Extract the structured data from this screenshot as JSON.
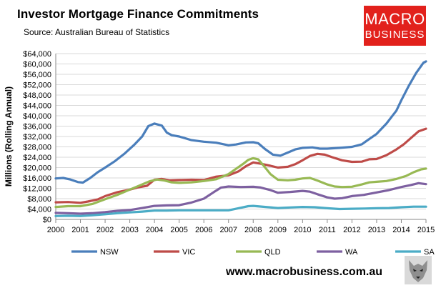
{
  "header": {
    "title": "Investor Mortgage Finance Commitments",
    "subtitle": "Source: Australian Bureau of Statistics"
  },
  "logo": {
    "line1": "MACRO",
    "line2": "BUSINESS"
  },
  "footer": {
    "url": "www.macrobusiness.com.au"
  },
  "chart_data": {
    "type": "line",
    "title": "Investor Mortgage Finance Commitments",
    "ylabel": "Millions (Rolling Annual)",
    "xlabel": "",
    "ylim": [
      0,
      64000
    ],
    "xlim": [
      2000,
      2015
    ],
    "yticks": [
      "$0",
      "$4,000",
      "$8,000",
      "$12,000",
      "$16,000",
      "$20,000",
      "$24,000",
      "$28,000",
      "$32,000",
      "$36,000",
      "$40,000",
      "$44,000",
      "$48,000",
      "$52,000",
      "$56,000",
      "$60,000",
      "$64,000"
    ],
    "xticks": [
      "2000",
      "2001",
      "2002",
      "2003",
      "2004",
      "2005",
      "2006",
      "2007",
      "2008",
      "2009",
      "2010",
      "2011",
      "2012",
      "2013",
      "2014",
      "2015"
    ],
    "grid": true,
    "legend": "bottom",
    "series": [
      {
        "name": "NSW",
        "color": "#4a7ebb",
        "points": [
          [
            2000,
            15800
          ],
          [
            2000.3,
            16000
          ],
          [
            2000.6,
            15400
          ],
          [
            2000.9,
            14400
          ],
          [
            2001.1,
            14200
          ],
          [
            2001.4,
            16000
          ],
          [
            2001.7,
            18200
          ],
          [
            2002,
            20000
          ],
          [
            2002.4,
            22500
          ],
          [
            2002.8,
            25500
          ],
          [
            2003.2,
            29000
          ],
          [
            2003.5,
            32000
          ],
          [
            2003.75,
            36000
          ],
          [
            2004,
            37000
          ],
          [
            2004.3,
            36200
          ],
          [
            2004.5,
            33500
          ],
          [
            2004.7,
            32500
          ],
          [
            2005,
            32000
          ],
          [
            2005.5,
            30600
          ],
          [
            2006,
            30000
          ],
          [
            2006.5,
            29600
          ],
          [
            2007,
            28600
          ],
          [
            2007.3,
            28900
          ],
          [
            2007.7,
            29700
          ],
          [
            2008,
            29800
          ],
          [
            2008.2,
            29400
          ],
          [
            2008.5,
            27000
          ],
          [
            2008.8,
            25000
          ],
          [
            2009.1,
            24600
          ],
          [
            2009.4,
            25800
          ],
          [
            2009.7,
            27000
          ],
          [
            2010,
            27600
          ],
          [
            2010.4,
            27800
          ],
          [
            2010.7,
            27300
          ],
          [
            2011,
            27300
          ],
          [
            2011.5,
            27600
          ],
          [
            2012,
            28000
          ],
          [
            2012.4,
            29000
          ],
          [
            2012.7,
            31000
          ],
          [
            2013,
            33000
          ],
          [
            2013.4,
            37000
          ],
          [
            2013.8,
            42000
          ],
          [
            2014,
            46000
          ],
          [
            2014.3,
            51500
          ],
          [
            2014.6,
            56500
          ],
          [
            2014.9,
            60500
          ],
          [
            2015,
            61000
          ]
        ]
      },
      {
        "name": "VIC",
        "color": "#be4b48",
        "points": [
          [
            2000,
            6600
          ],
          [
            2000.5,
            6700
          ],
          [
            2001,
            6400
          ],
          [
            2001.3,
            6900
          ],
          [
            2001.7,
            7700
          ],
          [
            2002,
            9000
          ],
          [
            2002.5,
            10500
          ],
          [
            2003,
            11500
          ],
          [
            2003.3,
            12300
          ],
          [
            2003.7,
            13000
          ],
          [
            2004,
            15300
          ],
          [
            2004.3,
            15600
          ],
          [
            2004.6,
            15100
          ],
          [
            2005,
            15200
          ],
          [
            2005.5,
            15300
          ],
          [
            2006,
            15200
          ],
          [
            2006.5,
            16500
          ],
          [
            2007,
            17000
          ],
          [
            2007.4,
            18500
          ],
          [
            2007.7,
            20500
          ],
          [
            2008,
            22000
          ],
          [
            2008.3,
            21500
          ],
          [
            2008.7,
            20700
          ],
          [
            2009,
            20000
          ],
          [
            2009.4,
            20300
          ],
          [
            2009.7,
            21300
          ],
          [
            2010,
            22800
          ],
          [
            2010.3,
            24500
          ],
          [
            2010.6,
            25300
          ],
          [
            2010.9,
            25000
          ],
          [
            2011.2,
            24000
          ],
          [
            2011.6,
            22800
          ],
          [
            2012,
            22200
          ],
          [
            2012.4,
            22300
          ],
          [
            2012.7,
            23200
          ],
          [
            2013,
            23300
          ],
          [
            2013.4,
            24800
          ],
          [
            2013.8,
            27000
          ],
          [
            2014.1,
            29000
          ],
          [
            2014.4,
            31500
          ],
          [
            2014.7,
            34000
          ],
          [
            2015,
            35000
          ]
        ]
      },
      {
        "name": "QLD",
        "color": "#98b954",
        "points": [
          [
            2000,
            4800
          ],
          [
            2000.5,
            5100
          ],
          [
            2001,
            5100
          ],
          [
            2001.5,
            6000
          ],
          [
            2002,
            7800
          ],
          [
            2002.5,
            9500
          ],
          [
            2003,
            11500
          ],
          [
            2003.5,
            13500
          ],
          [
            2003.8,
            14700
          ],
          [
            2004.1,
            15400
          ],
          [
            2004.4,
            15000
          ],
          [
            2004.7,
            14300
          ],
          [
            2005,
            14100
          ],
          [
            2005.5,
            14300
          ],
          [
            2006,
            14800
          ],
          [
            2006.5,
            15500
          ],
          [
            2007,
            17500
          ],
          [
            2007.3,
            19500
          ],
          [
            2007.6,
            21500
          ],
          [
            2007.8,
            23000
          ],
          [
            2008,
            23600
          ],
          [
            2008.2,
            23200
          ],
          [
            2008.4,
            21000
          ],
          [
            2008.7,
            17500
          ],
          [
            2009,
            15300
          ],
          [
            2009.4,
            15100
          ],
          [
            2009.7,
            15300
          ],
          [
            2010,
            15800
          ],
          [
            2010.3,
            16000
          ],
          [
            2010.6,
            15000
          ],
          [
            2011,
            13500
          ],
          [
            2011.3,
            12700
          ],
          [
            2011.6,
            12500
          ],
          [
            2012,
            12600
          ],
          [
            2012.4,
            13500
          ],
          [
            2012.7,
            14300
          ],
          [
            2013,
            14500
          ],
          [
            2013.4,
            14800
          ],
          [
            2013.8,
            15600
          ],
          [
            2014.2,
            16800
          ],
          [
            2014.5,
            18200
          ],
          [
            2014.8,
            19300
          ],
          [
            2015,
            19600
          ]
        ]
      },
      {
        "name": "WA",
        "color": "#7d60a0",
        "points": [
          [
            2000,
            2500
          ],
          [
            2000.5,
            2400
          ],
          [
            2001,
            2200
          ],
          [
            2001.5,
            2400
          ],
          [
            2002,
            2800
          ],
          [
            2002.5,
            3300
          ],
          [
            2003,
            3600
          ],
          [
            2003.5,
            4400
          ],
          [
            2004,
            5200
          ],
          [
            2004.5,
            5400
          ],
          [
            2005,
            5500
          ],
          [
            2005.5,
            6500
          ],
          [
            2006,
            8000
          ],
          [
            2006.4,
            10500
          ],
          [
            2006.7,
            12300
          ],
          [
            2007,
            12700
          ],
          [
            2007.5,
            12500
          ],
          [
            2008,
            12600
          ],
          [
            2008.3,
            12300
          ],
          [
            2008.7,
            11300
          ],
          [
            2009,
            10300
          ],
          [
            2009.5,
            10600
          ],
          [
            2010,
            11000
          ],
          [
            2010.3,
            10700
          ],
          [
            2010.6,
            9700
          ],
          [
            2011,
            8500
          ],
          [
            2011.3,
            8000
          ],
          [
            2011.6,
            8200
          ],
          [
            2012,
            9000
          ],
          [
            2012.5,
            9500
          ],
          [
            2013,
            10400
          ],
          [
            2013.5,
            11300
          ],
          [
            2014,
            12500
          ],
          [
            2014.4,
            13300
          ],
          [
            2014.7,
            14000
          ],
          [
            2015,
            13600
          ]
        ]
      },
      {
        "name": "SA",
        "color": "#4bacc6",
        "points": [
          [
            2000,
            1300
          ],
          [
            2000.5,
            1400
          ],
          [
            2001,
            1300
          ],
          [
            2001.5,
            1600
          ],
          [
            2002,
            2000
          ],
          [
            2002.5,
            2400
          ],
          [
            2003,
            2700
          ],
          [
            2003.5,
            3000
          ],
          [
            2004,
            3400
          ],
          [
            2004.5,
            3400
          ],
          [
            2005,
            3500
          ],
          [
            2006,
            3500
          ],
          [
            2007,
            3500
          ],
          [
            2007.4,
            4300
          ],
          [
            2007.8,
            5100
          ],
          [
            2008,
            5200
          ],
          [
            2008.5,
            4800
          ],
          [
            2009,
            4400
          ],
          [
            2009.5,
            4600
          ],
          [
            2010,
            4800
          ],
          [
            2010.5,
            4700
          ],
          [
            2011,
            4300
          ],
          [
            2011.5,
            4000
          ],
          [
            2012,
            4100
          ],
          [
            2012.5,
            4200
          ],
          [
            2013,
            4300
          ],
          [
            2013.5,
            4400
          ],
          [
            2014,
            4700
          ],
          [
            2014.5,
            4900
          ],
          [
            2015,
            4900
          ]
        ]
      }
    ]
  }
}
